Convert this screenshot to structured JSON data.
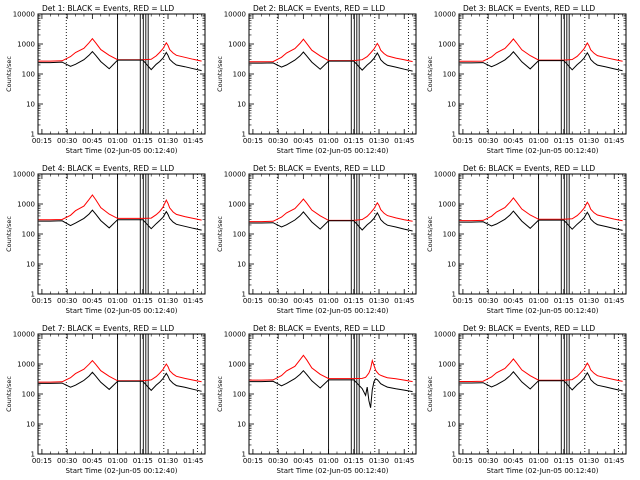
{
  "chart_data": {
    "type": "line",
    "shared": {
      "title_suffix": "BLACK = Events, RED = LLD",
      "xlabel": "Start Time (02-Jun-05 00:12:40)",
      "ylabel": "Counts/sec",
      "x_ticks": [
        "00:15",
        "00:30",
        "00:45",
        "01:00",
        "01:15",
        "01:30",
        "01:45"
      ],
      "x_tick_minutes": [
        15,
        30,
        45,
        60,
        75,
        90,
        105
      ],
      "xlim_minutes": [
        12.67,
        112
      ],
      "y_ticks": [
        "1",
        "10",
        "100",
        "1000",
        "10000"
      ],
      "y_tick_values": [
        1,
        10,
        100,
        1000,
        10000
      ],
      "ylim": [
        1,
        10000
      ],
      "yscale": "log",
      "grid": false,
      "solid_vlines_minutes": [
        60,
        73.5,
        75.3,
        76.8,
        78.2
      ],
      "dotted_vlines_minutes": [
        29.5,
        87.5,
        107.5
      ],
      "colors": {
        "events": "#000000",
        "lld": "#ff0000"
      }
    },
    "panels": [
      {
        "detector": "Det 1:",
        "x_minutes": [
          13,
          20,
          27,
          32,
          35,
          40,
          43,
          45,
          47,
          50,
          55,
          60,
          65,
          70,
          75,
          80,
          83,
          85,
          87,
          89,
          90,
          91,
          93,
          95,
          100,
          105,
          110
        ],
        "series": [
          {
            "name": "LLD",
            "values": [
              270,
              270,
              275,
              380,
              520,
              720,
              1100,
              1500,
              1100,
              650,
              420,
              300,
              300,
              300,
              300,
              310,
              400,
              520,
              700,
              1100,
              900,
              650,
              500,
              420,
              360,
              310,
              270
            ]
          },
          {
            "name": "Events",
            "values": [
              240,
              240,
              250,
              180,
              210,
              300,
              420,
              560,
              420,
              260,
              150,
              290,
              290,
              290,
              290,
              140,
              210,
              260,
              340,
              520,
              420,
              310,
              240,
              200,
              175,
              150,
              130
            ]
          }
        ]
      },
      {
        "detector": "Det 2:",
        "x_minutes": [
          13,
          20,
          27,
          32,
          35,
          40,
          43,
          45,
          47,
          50,
          55,
          60,
          65,
          70,
          75,
          80,
          83,
          85,
          87,
          89,
          90,
          91,
          93,
          95,
          100,
          105,
          110
        ],
        "series": [
          {
            "name": "LLD",
            "values": [
              255,
              255,
              260,
              360,
              500,
              700,
              1050,
              1450,
              1050,
              620,
              400,
              280,
              280,
              280,
              280,
              300,
              380,
              500,
              680,
              1050,
              850,
              620,
              480,
              400,
              340,
              300,
              260
            ]
          },
          {
            "name": "Events",
            "values": [
              230,
              230,
              235,
              170,
              200,
              290,
              400,
              540,
              400,
              250,
              145,
              270,
              270,
              270,
              270,
              135,
              200,
              250,
              330,
              500,
              400,
              300,
              230,
              195,
              170,
              145,
              125
            ]
          }
        ]
      },
      {
        "detector": "Det 3:",
        "x_minutes": [
          13,
          20,
          27,
          32,
          35,
          40,
          43,
          45,
          47,
          50,
          55,
          60,
          65,
          70,
          75,
          80,
          83,
          85,
          87,
          89,
          90,
          91,
          93,
          95,
          100,
          105,
          110
        ],
        "series": [
          {
            "name": "LLD",
            "values": [
              265,
              265,
              270,
              370,
              510,
              710,
              1080,
              1480,
              1080,
              640,
              410,
              290,
              290,
              290,
              290,
              305,
              390,
              510,
              690,
              1080,
              880,
              640,
              490,
              410,
              350,
              305,
              265
            ]
          },
          {
            "name": "Events",
            "values": [
              235,
              235,
              240,
              175,
              205,
              295,
              410,
              550,
              410,
              255,
              148,
              280,
              280,
              280,
              280,
              138,
              205,
              255,
              335,
              510,
              410,
              305,
              235,
              198,
              172,
              148,
              128
            ]
          }
        ]
      },
      {
        "detector": "Det 4:",
        "x_minutes": [
          13,
          20,
          27,
          32,
          35,
          40,
          43,
          45,
          47,
          50,
          55,
          60,
          65,
          70,
          75,
          80,
          83,
          85,
          87,
          89,
          90,
          91,
          93,
          95,
          100,
          105,
          110
        ],
        "series": [
          {
            "name": "LLD",
            "values": [
              300,
              300,
              305,
              420,
              600,
              850,
              1400,
              2000,
              1400,
              750,
              460,
              330,
              330,
              330,
              330,
              340,
              440,
              560,
              780,
              1350,
              1050,
              740,
              540,
              450,
              380,
              330,
              290
            ]
          },
          {
            "name": "Events",
            "values": [
              270,
              270,
              275,
              190,
              230,
              330,
              460,
              620,
              460,
              280,
              160,
              300,
              300,
              300,
              300,
              150,
              220,
              280,
              360,
              560,
              450,
              330,
              250,
              210,
              180,
              155,
              135
            ]
          }
        ]
      },
      {
        "detector": "Det 5:",
        "x_minutes": [
          13,
          20,
          27,
          32,
          35,
          40,
          43,
          45,
          47,
          50,
          55,
          60,
          65,
          70,
          75,
          80,
          83,
          85,
          87,
          89,
          90,
          91,
          93,
          95,
          100,
          105,
          110
        ],
        "series": [
          {
            "name": "LLD",
            "values": [
              260,
              260,
              265,
              365,
              505,
              705,
              1070,
              1470,
              1070,
              630,
              405,
              285,
              285,
              285,
              285,
              305,
              390,
              510,
              700,
              1100,
              900,
              650,
              490,
              410,
              345,
              300,
              265
            ]
          },
          {
            "name": "Events",
            "values": [
              232,
              232,
              238,
              172,
              202,
              292,
              405,
              545,
              405,
              252,
              146,
              275,
              275,
              275,
              275,
              136,
              202,
              252,
              332,
              505,
              405,
              302,
              232,
              196,
              171,
              146,
              126
            ]
          }
        ]
      },
      {
        "detector": "Det 6:",
        "x_minutes": [
          13,
          20,
          27,
          32,
          35,
          40,
          43,
          45,
          47,
          50,
          55,
          60,
          65,
          70,
          75,
          80,
          83,
          85,
          87,
          89,
          90,
          91,
          93,
          95,
          100,
          105,
          110
        ],
        "series": [
          {
            "name": "LLD",
            "values": [
              280,
              280,
              285,
              390,
              540,
              760,
              1150,
              1600,
              1150,
              680,
              430,
              310,
              310,
              310,
              310,
              320,
              410,
              530,
              720,
              1150,
              930,
              670,
              510,
              430,
              365,
              315,
              275
            ]
          },
          {
            "name": "Events",
            "values": [
              250,
              250,
              255,
              185,
              215,
              310,
              430,
              580,
              430,
              270,
              155,
              290,
              290,
              290,
              290,
              145,
              212,
              265,
              345,
              530,
              425,
              315,
              242,
              205,
              178,
              152,
              132
            ]
          }
        ]
      },
      {
        "detector": "Det 7:",
        "x_minutes": [
          13,
          20,
          27,
          32,
          35,
          40,
          43,
          45,
          47,
          50,
          55,
          60,
          65,
          70,
          75,
          80,
          83,
          85,
          87,
          89,
          90,
          91,
          93,
          95,
          100,
          105,
          110
        ],
        "series": [
          {
            "name": "LLD",
            "values": [
              250,
              250,
              255,
              350,
              480,
              670,
              980,
              1300,
              980,
              600,
              390,
              275,
              275,
              275,
              275,
              295,
              380,
              490,
              660,
              1000,
              820,
              600,
              460,
              390,
              330,
              290,
              255
            ]
          },
          {
            "name": "Events",
            "values": [
              225,
              225,
              230,
              168,
              196,
              285,
              395,
              530,
              395,
              245,
              142,
              265,
              265,
              265,
              265,
              132,
              198,
              246,
              325,
              490,
              395,
              295,
              226,
              191,
              167,
              143,
              123
            ]
          }
        ]
      },
      {
        "detector": "Det 8:",
        "x_minutes": [
          13,
          20,
          27,
          32,
          35,
          40,
          43,
          45,
          47,
          50,
          55,
          60,
          65,
          70,
          75,
          80,
          82,
          83,
          84,
          85,
          86,
          87,
          88,
          89,
          90,
          91,
          93,
          95,
          100,
          105,
          110
        ],
        "series": [
          {
            "name": "LLD",
            "values": [
              290,
              290,
              295,
              410,
              590,
              840,
              1380,
              1950,
              1380,
              740,
              455,
              325,
              325,
              325,
              325,
              330,
              360,
              420,
              500,
              700,
              1300,
              900,
              620,
              520,
              450,
              420,
              380,
              350,
              320,
              290,
              260
            ]
          },
          {
            "name": "Events",
            "values": [
              260,
              260,
              265,
              188,
              225,
              325,
              450,
              600,
              450,
              275,
              158,
              295,
              295,
              295,
              295,
              150,
              90,
              170,
              60,
              35,
              140,
              260,
              320,
              300,
              260,
              220,
              190,
              170,
              150,
              135,
              120
            ]
          }
        ]
      },
      {
        "detector": "Det 9:",
        "x_minutes": [
          13,
          20,
          27,
          32,
          35,
          40,
          43,
          45,
          47,
          50,
          55,
          60,
          65,
          70,
          75,
          80,
          83,
          85,
          87,
          89,
          90,
          91,
          93,
          95,
          100,
          105,
          110
        ],
        "series": [
          {
            "name": "LLD",
            "values": [
              262,
              262,
              268,
              368,
              508,
              708,
              1075,
              1475,
              1075,
              635,
              408,
              288,
              288,
              288,
              288,
              303,
              388,
              508,
              688,
              1075,
              875,
              635,
              488,
              408,
              348,
              303,
              263
            ]
          },
          {
            "name": "Events",
            "values": [
              233,
              233,
              238,
              173,
              203,
              293,
              408,
              548,
              408,
              253,
              147,
              278,
              278,
              278,
              278,
              137,
              203,
              253,
              333,
              508,
              408,
              303,
              233,
              197,
              171,
              147,
              127
            ]
          }
        ]
      }
    ]
  }
}
